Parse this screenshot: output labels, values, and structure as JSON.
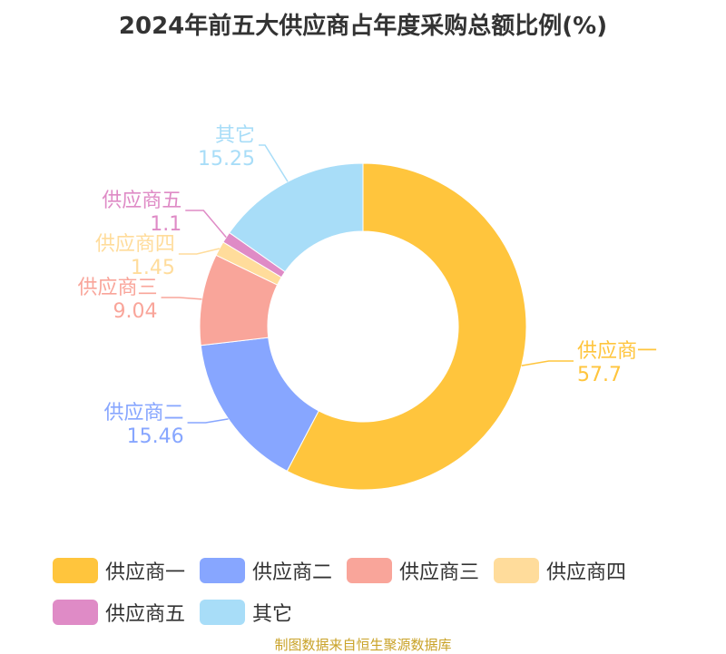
{
  "chart_data": {
    "type": "pie",
    "donut": true,
    "title": "2024年前五大供应商占年度采购总额比例(%)",
    "unit": "%",
    "categories": [
      "供应商一",
      "供应商二",
      "供应商三",
      "供应商四",
      "供应商五",
      "其它"
    ],
    "values": [
      57.7,
      15.46,
      9.04,
      1.45,
      1.1,
      15.25
    ],
    "value_labels": [
      "57.7",
      "15.46",
      "9.04",
      "1.45",
      "1.1",
      "15.25"
    ],
    "colors": [
      "#ffc53d",
      "#87a6ff",
      "#f9a59a",
      "#ffdc9b",
      "#df8bc6",
      "#a8ddf8"
    ],
    "legend_placement": "bottom"
  },
  "footer": "制图数据来自恒生聚源数据库"
}
